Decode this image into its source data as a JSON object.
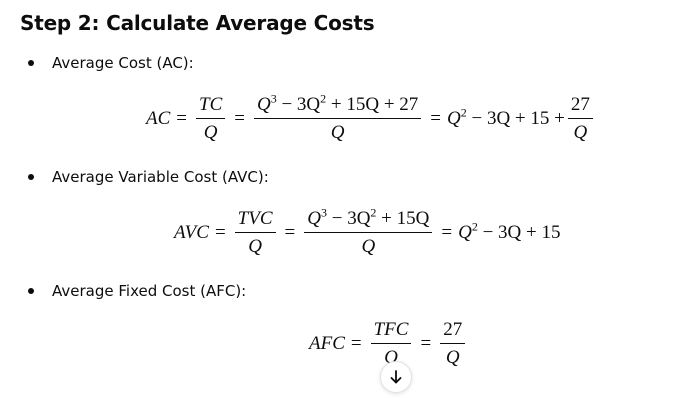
{
  "heading": "Step 2: Calculate Average Costs",
  "bullets": [
    {
      "label": "Average Cost (AC):"
    },
    {
      "label": "Average Variable Cost (AVC):"
    },
    {
      "label": "Average Fixed Cost (AFC):"
    }
  ],
  "equations": {
    "ac": {
      "lhs": "AC",
      "eq": "=",
      "f1_num": "TC",
      "f1_den": "Q",
      "f2_num_a": "Q",
      "f2_num_b": "3",
      "f2_num_c": " − 3Q",
      "f2_num_d": "2",
      "f2_num_e": " + 15Q + 27",
      "f2_den": "Q",
      "r_a": "Q",
      "r_b": "2",
      "r_c": " − 3Q + 15 + ",
      "f3_num": "27",
      "f3_den": "Q"
    },
    "avc": {
      "lhs": "AVC",
      "eq": "=",
      "f1_num": "TVC",
      "f1_den": "Q",
      "f2_num_a": "Q",
      "f2_num_b": "3",
      "f2_num_c": " − 3Q",
      "f2_num_d": "2",
      "f2_num_e": " + 15Q",
      "f2_den": "Q",
      "r_a": "Q",
      "r_b": "2",
      "r_c": " − 3Q + 15"
    },
    "afc": {
      "lhs": "AFC",
      "eq": "=",
      "f1_num": "TFC",
      "f1_den": "Q",
      "f2_num": "27",
      "f2_den": "Q"
    }
  },
  "icons": {
    "scroll_down": "arrow-down-icon"
  }
}
